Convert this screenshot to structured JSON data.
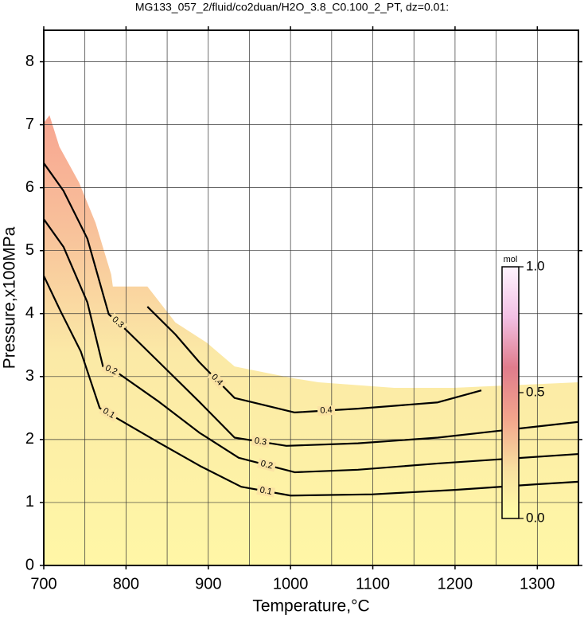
{
  "chart_data": {
    "type": "contour",
    "title": "MG133_057_2/fluid/co2duan/H2O_3.8_C0.100_2_PT, dz=0.01:",
    "x_label": "Temperature,°C",
    "y_label": "Pressure,x100MPa",
    "xlim": [
      700,
      1350
    ],
    "ylim": [
      0,
      8.5
    ],
    "xticks": [
      700,
      800,
      900,
      1000,
      1100,
      1200,
      1300
    ],
    "yticks": [
      0,
      1,
      2,
      3,
      4,
      5,
      6,
      7,
      8
    ],
    "xgrid": [
      750,
      800,
      850,
      900,
      950,
      1000,
      1050,
      1100,
      1150,
      1200,
      1250,
      1300
    ],
    "ygrid": [
      1,
      2,
      3,
      4,
      5,
      6,
      7,
      8
    ],
    "grid": true,
    "region": {
      "x": [
        700,
        707,
        719,
        743,
        763,
        782,
        784,
        826,
        860,
        898,
        932,
        1005,
        1034,
        1126,
        1198,
        1350
      ],
      "y": [
        7.03,
        7.15,
        6.65,
        6.08,
        5.44,
        4.62,
        4.43,
        4.43,
        3.86,
        3.54,
        3.16,
        2.97,
        2.91,
        2.82,
        2.82,
        2.91
      ]
    },
    "series": [
      {
        "level": 0.1,
        "color": "#000000",
        "x": [
          700,
          720,
          745,
          768,
          790,
          840,
          890,
          940,
          1000,
          1100,
          1200,
          1300,
          1350
        ],
        "values": [
          4.6,
          4.05,
          3.4,
          2.5,
          2.33,
          1.95,
          1.58,
          1.25,
          1.11,
          1.13,
          1.2,
          1.29,
          1.33
        ]
      },
      {
        "level": 0.2,
        "color": "#000000",
        "x": [
          700,
          724,
          753,
          772,
          792,
          840,
          889,
          937,
          1005,
          1082,
          1179,
          1350
        ],
        "values": [
          5.5,
          5.06,
          4.18,
          3.16,
          3.04,
          2.6,
          2.11,
          1.71,
          1.48,
          1.52,
          1.62,
          1.77
        ]
      },
      {
        "level": 0.3,
        "color": "#000000",
        "x": [
          700,
          724,
          753,
          779,
          801,
          840,
          889,
          932,
          995,
          1082,
          1179,
          1350
        ],
        "values": [
          6.39,
          5.95,
          5.19,
          3.99,
          3.73,
          3.23,
          2.6,
          2.03,
          1.9,
          1.94,
          2.03,
          2.28
        ]
      },
      {
        "level": 0.4,
        "color": "#000000",
        "x": [
          826,
          860,
          889,
          932,
          1005,
          1082,
          1179,
          1232
        ],
        "values": [
          4.11,
          3.67,
          3.23,
          2.66,
          2.43,
          2.49,
          2.59,
          2.78
        ]
      }
    ],
    "colorbar": {
      "label": "mol",
      "lim": [
        0,
        1
      ],
      "ticks": [
        {
          "value": 0,
          "label": "0.0"
        },
        {
          "value": 0.5,
          "label": "0.5"
        },
        {
          "value": 1,
          "label": "1.0"
        }
      ],
      "colors": [
        "#ffffa8",
        "#f8dfa0",
        "#f2a48c",
        "#e07c8c",
        "#f2c0e4",
        "#fff4ff"
      ]
    }
  }
}
